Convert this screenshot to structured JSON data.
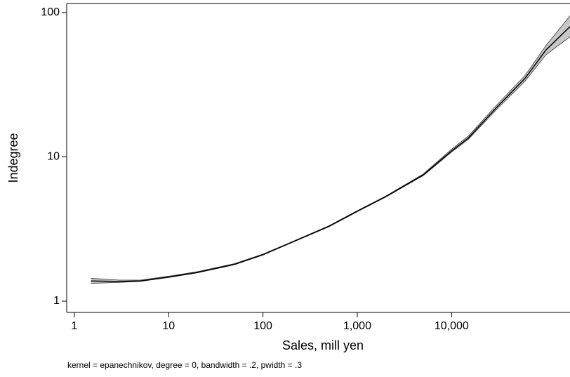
{
  "chart_data": {
    "type": "line-band",
    "x_label": "Sales, mill yen",
    "y_label": "Indegree",
    "note": "kernel = epanechnikov, degree = 0, bandwidth = .2, pwidth = .3",
    "log_x": true,
    "log_y": true,
    "x": [
      1.5,
      3,
      5,
      10,
      20,
      50,
      100,
      200,
      500,
      1000,
      2000,
      5000,
      10000,
      15000,
      30000,
      60000,
      100000,
      180000
    ],
    "values": [
      1.38,
      1.37,
      1.38,
      1.47,
      1.58,
      1.8,
      2.1,
      2.55,
      3.3,
      4.2,
      5.3,
      7.5,
      11,
      13.5,
      22,
      35,
      55,
      80
    ],
    "lower": [
      1.33,
      1.35,
      1.37,
      1.46,
      1.57,
      1.79,
      2.09,
      2.54,
      3.28,
      4.17,
      5.26,
      7.42,
      10.8,
      13.2,
      21.3,
      33.5,
      51,
      68
    ],
    "upper": [
      1.44,
      1.4,
      1.4,
      1.49,
      1.6,
      1.82,
      2.12,
      2.57,
      3.33,
      4.24,
      5.35,
      7.6,
      11.3,
      13.9,
      22.8,
      36.6,
      59,
      95
    ],
    "line_color": "#000000",
    "band_color": "#c8c8c8",
    "xlim": [
      0.83,
      180000
    ],
    "ylim": [
      0.836,
      115.6
    ],
    "xticks": [
      1,
      10,
      100,
      {
        "value": 1000,
        "label": "1,000"
      },
      {
        "value": 10000,
        "label": "10,000"
      }
    ],
    "yticks": [
      1,
      10,
      100
    ]
  }
}
